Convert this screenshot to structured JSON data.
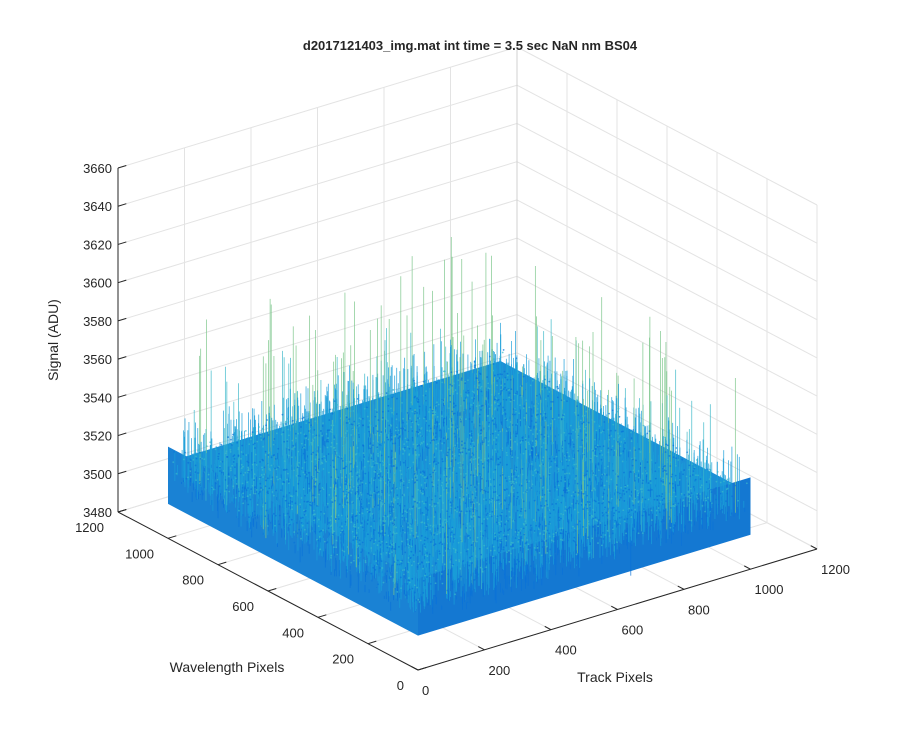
{
  "chart_data": {
    "type": "surface",
    "title": "d2017121403_img.mat int time = 3.5 sec  NaN nm BS04",
    "xlabel": "Track Pixels",
    "ylabel": "Wavelength Pixels",
    "zlabel": "Signal (ADU)",
    "xlim": [
      0,
      1200
    ],
    "ylim": [
      0,
      1200
    ],
    "zlim": [
      3480,
      3660
    ],
    "xticks": [
      "0",
      "200",
      "400",
      "600",
      "800",
      "1000",
      "1200"
    ],
    "yticks": [
      "0",
      "200",
      "400",
      "600",
      "800",
      "1000",
      "1200"
    ],
    "zticks": [
      "3480",
      "3500",
      "3520",
      "3540",
      "3560",
      "3580",
      "3600",
      "3620",
      "3640",
      "3660"
    ],
    "surface_extent": {
      "x": [
        0,
        1000
      ],
      "y": [
        0,
        1000
      ]
    },
    "surface_mean": 3520,
    "surface_noise_range": [
      3495,
      3600
    ],
    "grid": true,
    "colormap": "parula",
    "colors": {
      "low": "#0a72d8",
      "mid": "#1a9ed8",
      "high": "#3cb9c9",
      "peak": "#7ac58a"
    }
  }
}
